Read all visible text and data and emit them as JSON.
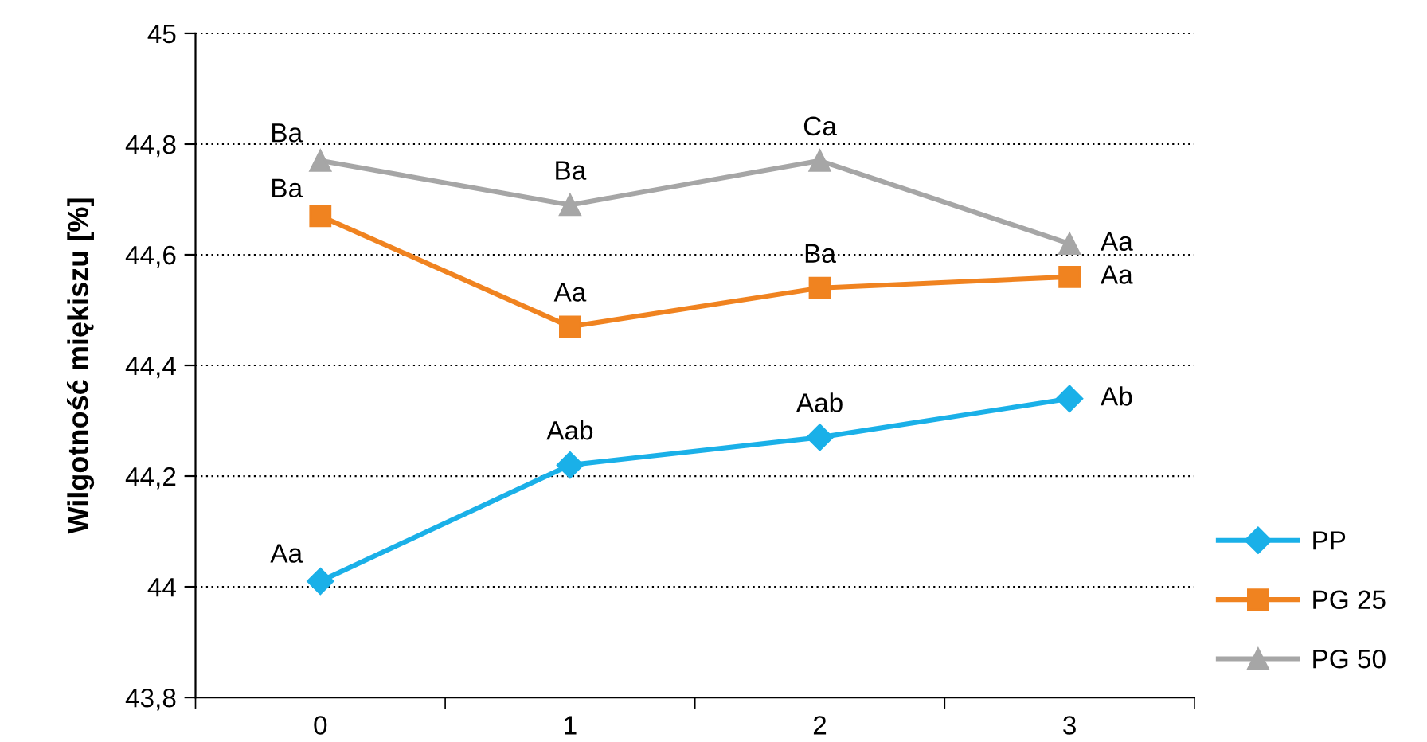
{
  "chart_data": {
    "type": "line",
    "ylabel": "Wilgotność miękiszu [%]",
    "categories": [
      "0",
      "1",
      "2",
      "3"
    ],
    "series": [
      {
        "name": "PP",
        "color": "#1ab0e8",
        "marker": "diamond",
        "values": [
          44.01,
          44.22,
          44.27,
          44.34
        ]
      },
      {
        "name": "PG 25",
        "color": "#f08320",
        "marker": "square",
        "values": [
          44.67,
          44.47,
          44.54,
          44.56
        ]
      },
      {
        "name": "PG 50",
        "color": "#a6a6a6",
        "marker": "triangle",
        "values": [
          44.77,
          44.69,
          44.77,
          44.62
        ]
      }
    ],
    "ylim": [
      43.8,
      45
    ],
    "yticks": [
      {
        "value": 43.8,
        "label": "43,8"
      },
      {
        "value": 44,
        "label": "44"
      },
      {
        "value": 44.2,
        "label": "44,2"
      },
      {
        "value": 44.4,
        "label": "44,4"
      },
      {
        "value": 44.6,
        "label": "44,6"
      },
      {
        "value": 44.8,
        "label": "44,8"
      },
      {
        "value": 45,
        "label": "45"
      }
    ],
    "grid": "y",
    "legend": "right",
    "line_style": "solid",
    "annotations": [
      {
        "text": "Aa",
        "x": "0",
        "y": 44.01
      },
      {
        "text": "Aab",
        "x": "1",
        "y": 44.22
      },
      {
        "text": "Aab",
        "x": "2",
        "y": 44.27
      },
      {
        "text": "Ab",
        "x": "3",
        "y": 44.34
      },
      {
        "text": "Ba",
        "x": "0",
        "y": 44.67
      },
      {
        "text": "Aa",
        "x": "1",
        "y": 44.47
      },
      {
        "text": "Ba",
        "x": "2",
        "y": 44.54
      },
      {
        "text": "Aa",
        "x": "3",
        "y": 44.56
      },
      {
        "text": "Ba",
        "x": "0",
        "y": 44.77
      },
      {
        "text": "Ba",
        "x": "1",
        "y": 44.69
      },
      {
        "text": "Ca",
        "x": "2",
        "y": 44.77
      },
      {
        "text": "Aa",
        "x": "3",
        "y": 44.62
      }
    ]
  }
}
